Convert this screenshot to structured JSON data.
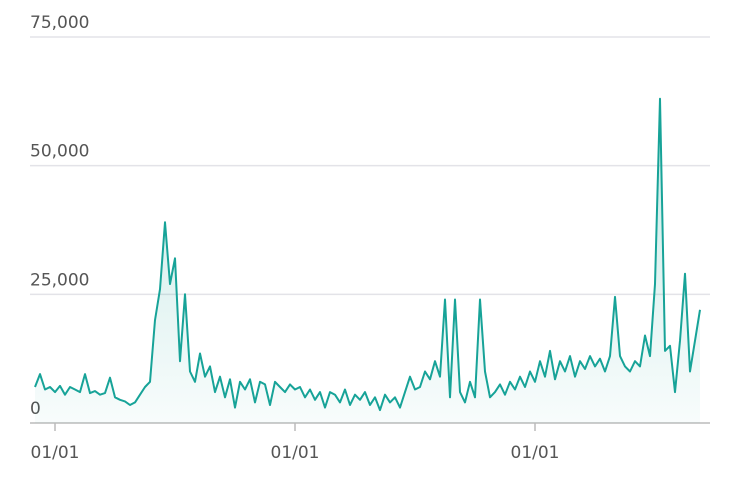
{
  "chart_data": {
    "type": "line",
    "color": "#17a398",
    "grid": true,
    "ylim": [
      0,
      75000
    ],
    "yticks": [
      0,
      {
        "value": 25000,
        "label": "25,000"
      },
      {
        "value": 50000,
        "label": "50,000"
      },
      {
        "value": 75000,
        "label": "75,000"
      }
    ],
    "categories": [
      null,
      null,
      null,
      null,
      "01/01",
      null,
      null,
      null,
      null,
      null,
      null,
      null,
      null,
      null,
      null,
      null,
      null,
      null,
      null,
      null,
      null,
      null,
      null,
      null,
      null,
      null,
      null,
      null,
      null,
      null,
      null,
      null,
      null,
      null,
      null,
      null,
      null,
      null,
      null,
      null,
      null,
      null,
      null,
      null,
      null,
      null,
      null,
      null,
      null,
      null,
      null,
      null,
      "01/01",
      null,
      null,
      null,
      null,
      null,
      null,
      null,
      null,
      null,
      null,
      null,
      null,
      null,
      null,
      null,
      null,
      null,
      null,
      null,
      null,
      null,
      null,
      null,
      null,
      null,
      null,
      null,
      null,
      null,
      null,
      null,
      null,
      null,
      null,
      null,
      null,
      null,
      null,
      null,
      null,
      null,
      null,
      null,
      null,
      null,
      null,
      null,
      "01/01",
      null,
      null,
      null,
      null,
      null,
      null,
      null,
      null,
      null,
      null,
      null,
      null,
      null,
      null,
      null,
      null,
      null,
      null,
      null,
      null,
      null,
      null,
      null,
      null,
      null,
      null,
      null,
      null,
      null,
      null,
      null,
      null,
      null
    ],
    "values": [
      7000,
      9500,
      6500,
      7000,
      6000,
      7200,
      5500,
      7000,
      6500,
      6000,
      9500,
      5800,
      6200,
      5500,
      5800,
      8800,
      5000,
      4500,
      4200,
      3500,
      4000,
      5500,
      7000,
      8000,
      20000,
      26000,
      39000,
      27000,
      32000,
      12000,
      25000,
      10000,
      8000,
      13500,
      9000,
      11000,
      6000,
      9000,
      5000,
      8500,
      3000,
      8000,
      6500,
      8500,
      4000,
      8000,
      7500,
      3500,
      8000,
      7000,
      6000,
      7500,
      6500,
      7000,
      5000,
      6500,
      4500,
      6000,
      3000,
      6000,
      5500,
      4000,
      6500,
      3500,
      5500,
      4500,
      6000,
      3500,
      5000,
      2500,
      5500,
      4000,
      5000,
      3000,
      6000,
      9000,
      6500,
      7000,
      10000,
      8500,
      12000,
      9000,
      24000,
      5000,
      24000,
      6000,
      4000,
      8000,
      5000,
      24000,
      10000,
      5000,
      6000,
      7500,
      5500,
      8000,
      6500,
      9000,
      7000,
      10000,
      8000,
      12000,
      9000,
      14000,
      8500,
      12000,
      10000,
      13000,
      9000,
      12000,
      10500,
      13000,
      11000,
      12500,
      10000,
      13000,
      24500,
      13000,
      11000,
      10000,
      12000,
      11000,
      17000,
      13000,
      27000,
      63000,
      14000,
      15000,
      6000,
      16000,
      29000,
      10000,
      16000,
      22000
    ]
  }
}
